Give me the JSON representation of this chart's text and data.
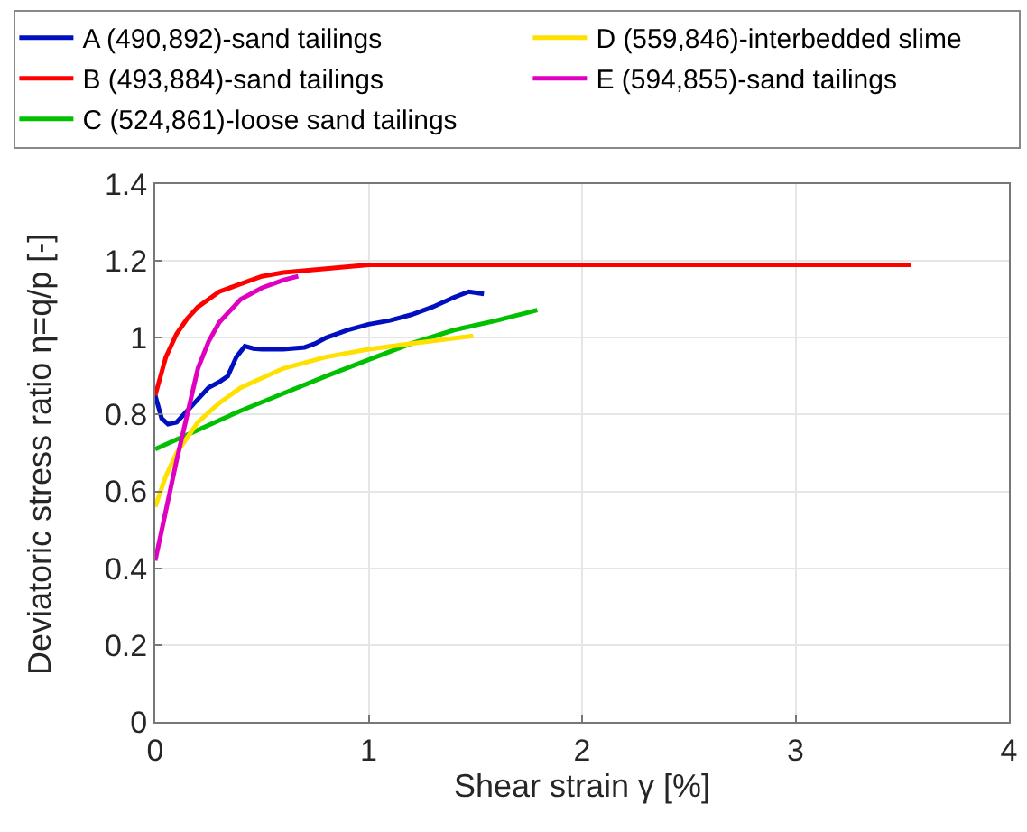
{
  "chart_data": {
    "type": "line",
    "xlabel": "Shear strain γ [%]",
    "ylabel": "Deviatoric stress ratio η=q/p [-]",
    "xlim": [
      0,
      4
    ],
    "xticks": [
      0,
      1,
      2,
      3,
      4
    ],
    "ylim": [
      0,
      1.4
    ],
    "yticks": [
      0,
      0.2,
      0.4,
      0.6,
      0.8,
      1,
      1.2,
      1.4
    ],
    "grid": true,
    "legend": "top",
    "marker": "none",
    "line_style": "solid",
    "series": [
      {
        "name": "A (490,892)-sand tailings",
        "color": "#0010c0",
        "x": [
          0,
          0.03,
          0.06,
          0.1,
          0.15,
          0.2,
          0.25,
          0.3,
          0.34,
          0.38,
          0.42,
          0.46,
          0.5,
          0.6,
          0.7,
          0.75,
          0.8,
          0.9,
          1.0,
          1.1,
          1.2,
          1.3,
          1.4,
          1.47,
          1.54
        ],
        "values": [
          0.85,
          0.79,
          0.775,
          0.78,
          0.81,
          0.84,
          0.87,
          0.885,
          0.9,
          0.95,
          0.978,
          0.972,
          0.97,
          0.97,
          0.975,
          0.985,
          1.0,
          1.02,
          1.035,
          1.045,
          1.06,
          1.08,
          1.105,
          1.12,
          1.114
        ]
      },
      {
        "name": "B (493,884)-sand tailings",
        "color": "#ff0000",
        "x": [
          0,
          0.05,
          0.1,
          0.15,
          0.2,
          0.3,
          0.4,
          0.5,
          0.6,
          0.8,
          1.0,
          1.5,
          2.0,
          3.0,
          3.54
        ],
        "values": [
          0.85,
          0.95,
          1.01,
          1.05,
          1.08,
          1.12,
          1.14,
          1.16,
          1.17,
          1.18,
          1.19,
          1.19,
          1.19,
          1.19,
          1.19
        ]
      },
      {
        "name": "C (524,861)-loose sand tailings",
        "color": "#00c000",
        "x": [
          0,
          0.2,
          0.4,
          0.6,
          0.8,
          1.0,
          1.2,
          1.4,
          1.6,
          1.79
        ],
        "values": [
          0.71,
          0.76,
          0.81,
          0.855,
          0.9,
          0.943,
          0.985,
          1.02,
          1.045,
          1.072
        ]
      },
      {
        "name": "D (559,846)-interbedded slime",
        "color": "#ffe000",
        "x": [
          0,
          0.05,
          0.1,
          0.2,
          0.3,
          0.4,
          0.6,
          0.8,
          1.0,
          1.2,
          1.49
        ],
        "values": [
          0.56,
          0.64,
          0.7,
          0.78,
          0.83,
          0.87,
          0.92,
          0.95,
          0.97,
          0.985,
          1.005
        ]
      },
      {
        "name": "E (594,855)-sand tailings",
        "color": "#e000c0",
        "x": [
          0,
          0.05,
          0.1,
          0.15,
          0.2,
          0.25,
          0.3,
          0.4,
          0.5,
          0.6,
          0.67
        ],
        "values": [
          0.42,
          0.55,
          0.68,
          0.8,
          0.92,
          0.99,
          1.04,
          1.1,
          1.13,
          1.15,
          1.16
        ]
      }
    ]
  }
}
